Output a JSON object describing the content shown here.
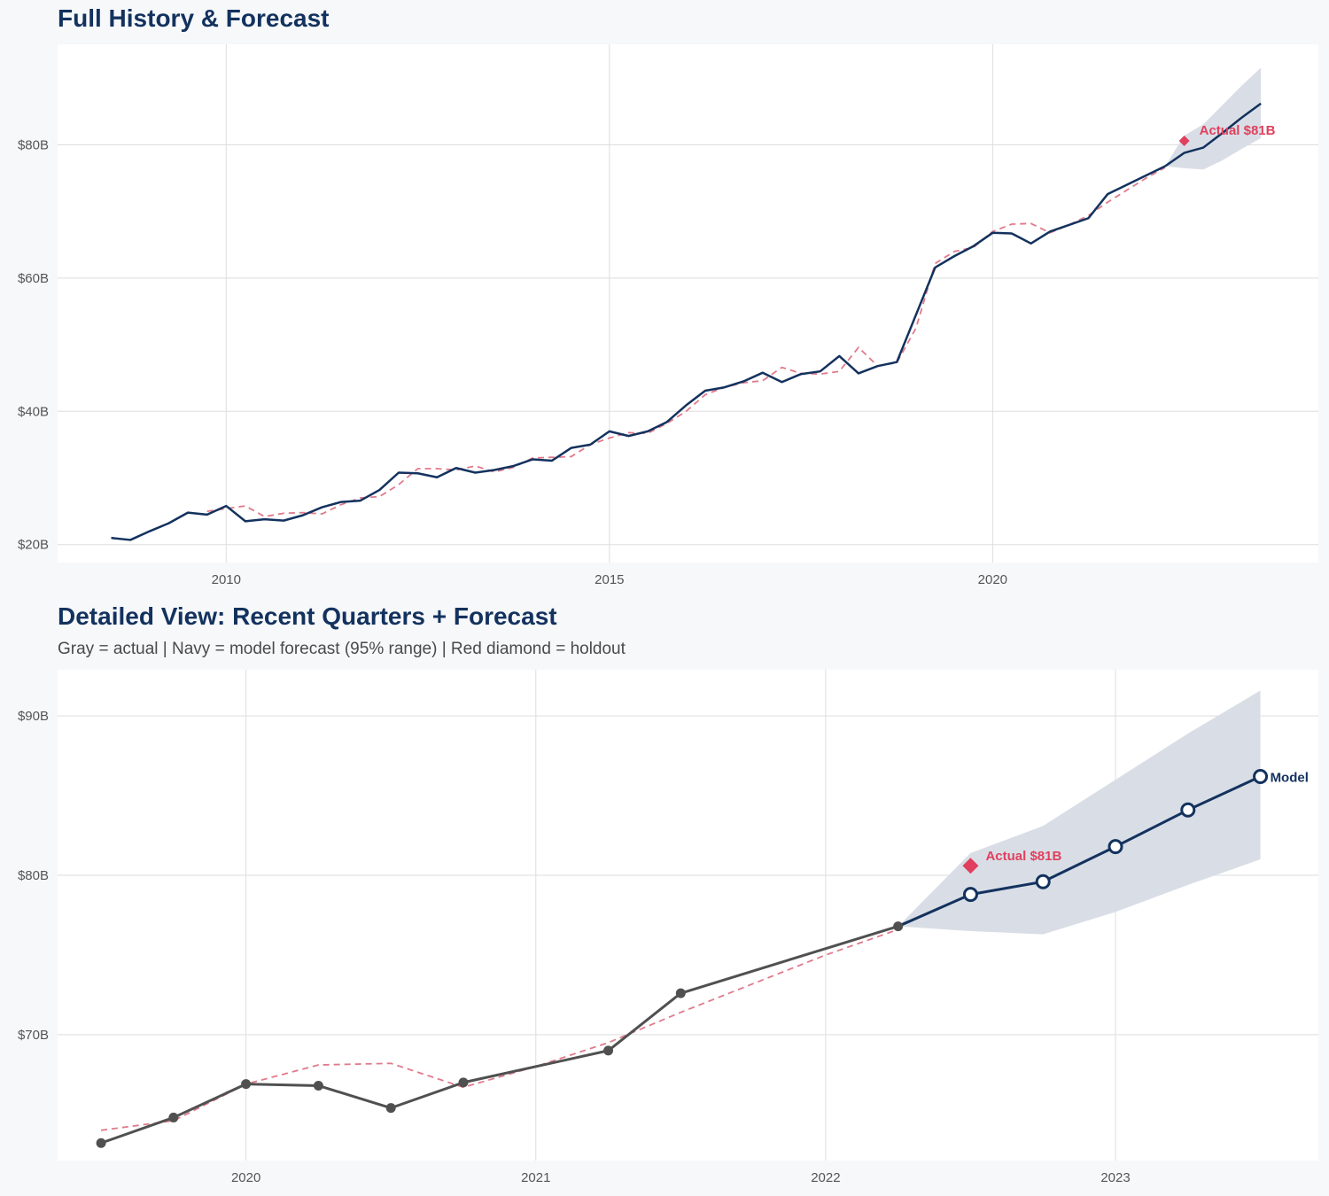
{
  "colors": {
    "navy": "#13325e",
    "actual_gray": "#505050",
    "fitted_red": "#e07a8c",
    "holdout_red": "#e0405e",
    "band": "#d9dee6",
    "grid": "#dddddd",
    "panel": "#ffffff",
    "background": "#f7f8fa"
  },
  "chart_data": [
    {
      "type": "line",
      "title": "Full History & Forecast",
      "x_tick_labels": [
        "2010",
        "2015",
        "2020"
      ],
      "x_ticks": [
        2010,
        2015,
        2020
      ],
      "y_tick_labels": [
        "$20B",
        "$40B",
        "$60B",
        "$80B"
      ],
      "y_ticks": [
        20,
        40,
        60,
        80
      ],
      "xlim": [
        2007.8,
        2024.25
      ],
      "ylim": [
        17.3,
        95.1
      ],
      "annotation": {
        "label": "Actual $81B",
        "x": 2022.5,
        "y": 80.6
      },
      "series": [
        {
          "name": "Actual",
          "x": [
            2008.5,
            2008.75,
            2009,
            2009.25,
            2009.5,
            2009.75,
            2010,
            2010.25,
            2010.5,
            2010.75,
            2011,
            2011.25,
            2011.5,
            2011.75,
            2012,
            2012.25,
            2012.5,
            2012.75,
            2013,
            2013.25,
            2013.5,
            2013.75,
            2014,
            2014.25,
            2014.5,
            2014.75,
            2015,
            2015.25,
            2015.5,
            2015.75,
            2016,
            2016.25,
            2016.5,
            2016.75,
            2017,
            2017.25,
            2017.5,
            2017.75,
            2018,
            2018.25,
            2018.5,
            2018.75,
            2019,
            2019.25,
            2019.5,
            2019.75,
            2020,
            2020.25,
            2020.5,
            2020.75,
            2021,
            2021.25,
            2021.5,
            2021.75,
            2022,
            2022.25
          ],
          "values": [
            21.0,
            20.7,
            22.0,
            23.2,
            24.8,
            24.5,
            25.8,
            23.5,
            23.8,
            23.6,
            24.4,
            25.6,
            26.4,
            26.6,
            28.2,
            30.8,
            30.7,
            30.1,
            31.5,
            30.8,
            31.2,
            31.8,
            32.8,
            32.6,
            34.5,
            35.0,
            37.0,
            36.3,
            37.0,
            38.4,
            40.9,
            43.1,
            43.6,
            44.5,
            45.8,
            44.4,
            45.6,
            46.0,
            48.3,
            45.7,
            46.8,
            47.4,
            54.5,
            61.6,
            63.3,
            64.8,
            66.8,
            66.7,
            65.2,
            67.0,
            68.0,
            69.0,
            72.6,
            74.0,
            75.4,
            76.8
          ]
        },
        {
          "name": "Fitted",
          "x": [
            2009.75,
            2010,
            2010.25,
            2010.5,
            2010.75,
            2011,
            2011.25,
            2011.5,
            2011.75,
            2012,
            2012.25,
            2012.5,
            2012.75,
            2013,
            2013.25,
            2013.5,
            2013.75,
            2014,
            2014.25,
            2014.5,
            2014.75,
            2015,
            2015.25,
            2015.5,
            2015.75,
            2016,
            2016.25,
            2016.5,
            2016.75,
            2017,
            2017.25,
            2017.5,
            2017.75,
            2018,
            2018.25,
            2018.5,
            2018.75,
            2019,
            2019.25,
            2019.5,
            2019.75,
            2020,
            2020.25,
            2020.5,
            2020.75,
            2021,
            2021.25,
            2021.5,
            2021.75,
            2022,
            2022.25
          ],
          "values": [
            25.0,
            25.4,
            25.8,
            24.2,
            24.7,
            24.8,
            24.6,
            26.0,
            27.0,
            27.2,
            29.0,
            31.4,
            31.4,
            31.2,
            31.8,
            30.9,
            31.6,
            33.0,
            33.1,
            33.2,
            35.0,
            36.0,
            36.8,
            36.7,
            38.2,
            40.0,
            42.5,
            43.6,
            44.3,
            44.6,
            46.6,
            45.7,
            45.6,
            46.0,
            49.6,
            46.8,
            47.3,
            52.5,
            62.2,
            64.0,
            64.6,
            67.0,
            68.1,
            68.2,
            66.8,
            68.0,
            69.4,
            71.4,
            73.2,
            75.0,
            76.6
          ]
        },
        {
          "name": "Forecast",
          "x": [
            2022.25,
            2022.5,
            2022.75,
            2023,
            2023.25,
            2023.5
          ],
          "values": [
            76.8,
            78.8,
            79.6,
            81.8,
            84.1,
            86.2
          ],
          "lower": [
            76.8,
            76.5,
            76.3,
            77.7,
            79.4,
            81.0
          ],
          "upper": [
            76.8,
            81.4,
            83.1,
            86.0,
            88.9,
            91.6
          ]
        }
      ]
    },
    {
      "type": "line",
      "title": "Detailed View: Recent Quarters + Forecast",
      "subtitle": "Gray = actual  |  Navy = model forecast (95% range)  |  Red diamond = holdout",
      "x_tick_labels": [
        "2020",
        "2021",
        "2022",
        "2023"
      ],
      "x_ticks": [
        2020,
        2021,
        2022,
        2023
      ],
      "y_tick_labels": [
        "$70B",
        "$80B",
        "$90B"
      ],
      "y_ticks": [
        70,
        80,
        90
      ],
      "xlim": [
        2019.35,
        2023.7
      ],
      "ylim": [
        62.1,
        92.9
      ],
      "annotation": {
        "label": "Actual $81B",
        "x": 2022.5,
        "y": 80.6
      },
      "end_label": "Model",
      "series": [
        {
          "name": "Actual",
          "x": [
            2019.5,
            2019.75,
            2020,
            2020.25,
            2020.5,
            2020.75,
            2021.25,
            2021.5,
            2022.25
          ],
          "values": [
            63.2,
            64.8,
            66.9,
            66.8,
            65.4,
            67.0,
            69.0,
            72.6,
            76.8
          ]
        },
        {
          "name": "Fitted",
          "x": [
            2019.5,
            2019.75,
            2020,
            2020.25,
            2020.5,
            2020.75,
            2021,
            2021.25,
            2021.5,
            2021.75,
            2022,
            2022.25
          ],
          "values": [
            64.0,
            64.6,
            66.9,
            68.1,
            68.2,
            66.7,
            68.0,
            69.5,
            71.4,
            73.2,
            75.0,
            76.6
          ]
        },
        {
          "name": "Forecast",
          "x": [
            2022.25,
            2022.5,
            2022.75,
            2023,
            2023.25,
            2023.5
          ],
          "values": [
            76.8,
            78.8,
            79.6,
            81.8,
            84.1,
            86.2
          ],
          "lower": [
            76.8,
            76.5,
            76.3,
            77.7,
            79.4,
            81.0
          ],
          "upper": [
            76.8,
            81.4,
            83.1,
            86.0,
            88.9,
            91.6
          ]
        }
      ]
    }
  ]
}
